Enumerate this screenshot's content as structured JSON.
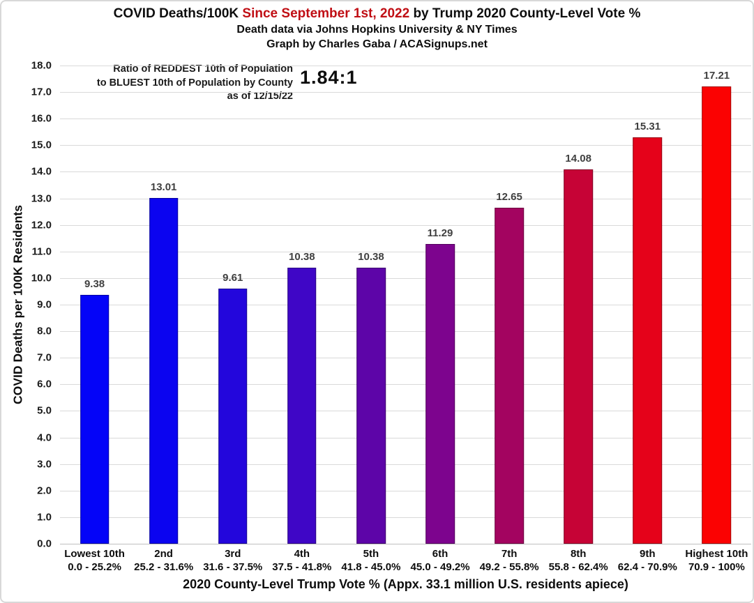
{
  "title": {
    "part1": "COVID Deaths/100K ",
    "highlight": "Since September 1st, 2022",
    "part2": " by Trump 2020 County-Level Vote %",
    "subtitle1": "Death data via Johns Hopkins University & NY Times",
    "subtitle2": "Graph by Charles Gaba / ACASignups.net"
  },
  "annotation": {
    "line1": "Ratio of REDDEST 10th of Population",
    "line2": "to BLUEST 10th of Population by County",
    "line3": "as of 12/15/22",
    "ratio": "1.84:1"
  },
  "colors": {
    "title_highlight": "#c00e14",
    "value_label": "#404040",
    "gridline": "#d9d9d9",
    "axis_line": "#bfbfbf"
  },
  "chart_data": {
    "type": "bar",
    "title": "COVID Deaths/100K Since September 1st, 2022 by Trump 2020 County-Level Vote %",
    "subtitle": "Death data via Johns Hopkins University & NY Times — Graph by Charles Gaba / ACASignups.net",
    "xlabel": "2020 County-Level Trump Vote % (Appx. 33.1 million U.S. residents apiece)",
    "ylabel": "COVID Deaths per 100K Residents",
    "ylim": [
      0,
      18
    ],
    "ytick_step": 1.0,
    "grid": true,
    "legend": false,
    "categories": [
      "Lowest 10th",
      "2nd",
      "3rd",
      "4th",
      "5th",
      "6th",
      "7th",
      "8th",
      "9th",
      "Highest 10th"
    ],
    "ranges": [
      "0.0 - 25.2%",
      "25.2 - 31.6%",
      "31.6 - 37.5%",
      "37.5 - 41.8%",
      "41.8 - 45.0%",
      "45.0 - 49.2%",
      "49.2 - 55.8%",
      "55.8 - 62.4%",
      "62.4 - 70.9%",
      "70.9 - 100%"
    ],
    "values": [
      9.38,
      13.01,
      9.61,
      10.38,
      10.38,
      11.29,
      12.65,
      14.08,
      15.31,
      17.21
    ],
    "bar_colors": [
      "#0404f8",
      "#0b04f0",
      "#2306dc",
      "#3f06c6",
      "#5d05a8",
      "#7d048e",
      "#a30460",
      "#c60336",
      "#e5021a",
      "#fb0202"
    ],
    "ratio_annotation": "Ratio of REDDEST 10th of Population to BLUEST 10th of Population by County as of 12/15/22",
    "ratio_value": "1.84:1"
  }
}
